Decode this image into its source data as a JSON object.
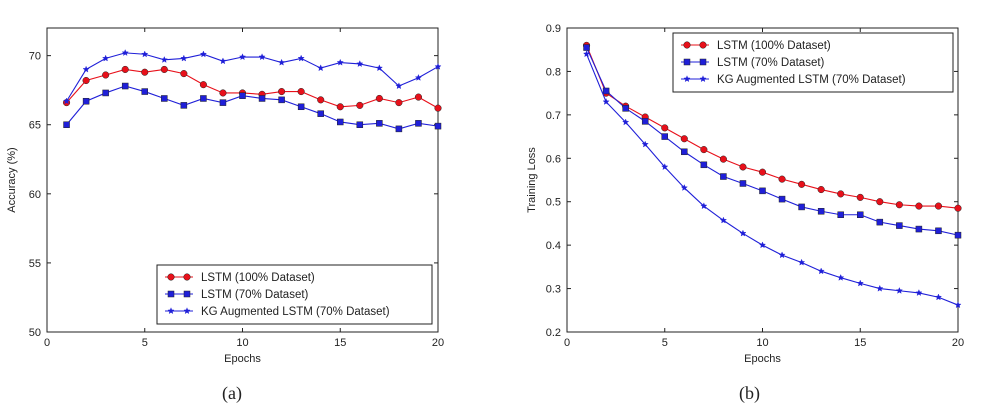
{
  "chart_data": [
    {
      "type": "line",
      "caption": "(a)",
      "xlabel": "Epochs",
      "ylabel": "Accuracy (%)",
      "xlim": [
        0,
        20
      ],
      "ylim": [
        50,
        72
      ],
      "xticks": [
        0,
        5,
        10,
        15,
        20
      ],
      "yticks": [
        50,
        55,
        60,
        65,
        70
      ],
      "legend_position": "bottom-right",
      "x": [
        1,
        2,
        3,
        4,
        5,
        6,
        7,
        8,
        9,
        10,
        11,
        12,
        13,
        14,
        15,
        16,
        17,
        18,
        19,
        20
      ],
      "series": [
        {
          "name": "LSTM (100% Dataset)",
          "color": "#e8101a",
          "marker": "circle",
          "values": [
            66.6,
            68.2,
            68.6,
            69.0,
            68.8,
            69.0,
            68.7,
            67.9,
            67.3,
            67.3,
            67.2,
            67.4,
            67.4,
            66.8,
            66.3,
            66.4,
            66.9,
            66.6,
            67.0,
            66.2
          ]
        },
        {
          "name": "LSTM (70% Dataset)",
          "color": "#1f1fd8",
          "marker": "square",
          "values": [
            65.0,
            66.7,
            67.3,
            67.8,
            67.4,
            66.9,
            66.4,
            66.9,
            66.6,
            67.1,
            66.9,
            66.8,
            66.3,
            65.8,
            65.2,
            65.0,
            65.1,
            64.7,
            65.1,
            64.9
          ]
        },
        {
          "name": "KG Augmented LSTM (70% Dataset)",
          "color": "#1f1fd8",
          "marker": "star",
          "values": [
            66.7,
            69.0,
            69.8,
            70.2,
            70.1,
            69.7,
            69.8,
            70.1,
            69.6,
            69.9,
            69.9,
            69.5,
            69.8,
            69.1,
            69.5,
            69.4,
            69.1,
            67.8,
            68.4,
            69.2
          ]
        }
      ]
    },
    {
      "type": "line",
      "caption": "(b)",
      "xlabel": "Epochs",
      "ylabel": "Training Loss",
      "xlim": [
        0,
        20
      ],
      "ylim": [
        0.2,
        0.9
      ],
      "xticks": [
        0,
        5,
        10,
        15,
        20
      ],
      "yticks": [
        0.2,
        0.3,
        0.4,
        0.5,
        0.6,
        0.7,
        0.8,
        0.9
      ],
      "legend_position": "top-right",
      "x": [
        1,
        2,
        3,
        4,
        5,
        6,
        7,
        8,
        9,
        10,
        11,
        12,
        13,
        14,
        15,
        16,
        17,
        18,
        19,
        20
      ],
      "series": [
        {
          "name": "LSTM (100% Dataset)",
          "color": "#e8101a",
          "marker": "circle",
          "values": [
            0.86,
            0.75,
            0.72,
            0.695,
            0.67,
            0.645,
            0.62,
            0.598,
            0.58,
            0.568,
            0.552,
            0.54,
            0.528,
            0.518,
            0.51,
            0.5,
            0.493,
            0.49,
            0.49,
            0.485
          ]
        },
        {
          "name": "LSTM (70% Dataset)",
          "color": "#1f1fd8",
          "marker": "square",
          "values": [
            0.855,
            0.755,
            0.715,
            0.685,
            0.65,
            0.615,
            0.585,
            0.558,
            0.542,
            0.525,
            0.506,
            0.488,
            0.478,
            0.47,
            0.47,
            0.453,
            0.445,
            0.437,
            0.433,
            0.423
          ]
        },
        {
          "name": "KG Augmented LSTM (70% Dataset)",
          "color": "#1f1fd8",
          "marker": "star",
          "values": [
            0.84,
            0.73,
            0.683,
            0.632,
            0.58,
            0.532,
            0.49,
            0.457,
            0.427,
            0.4,
            0.377,
            0.36,
            0.34,
            0.325,
            0.312,
            0.3,
            0.295,
            0.29,
            0.28,
            0.262
          ]
        }
      ]
    }
  ]
}
